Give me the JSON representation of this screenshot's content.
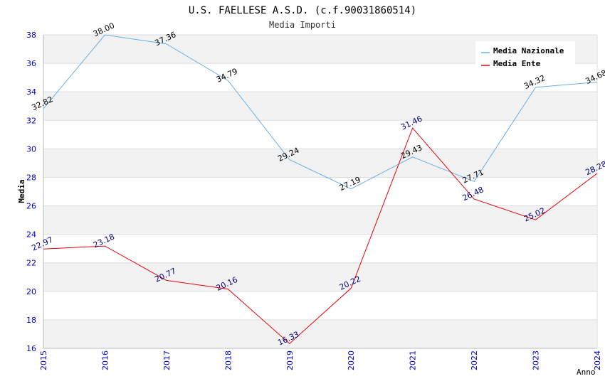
{
  "chart_data": {
    "type": "line",
    "title": "U.S. FAELLESE A.S.D. (c.f.90031860514)",
    "subtitle": "Media Importi",
    "xlabel": "Anno",
    "ylabel": "Media",
    "categories": [
      "2015",
      "2016",
      "2017",
      "2018",
      "2019",
      "2020",
      "2021",
      "2022",
      "2023",
      "2024"
    ],
    "ylim": [
      16,
      38
    ],
    "yticks": [
      "16",
      "18",
      "20",
      "22",
      "24",
      "26",
      "28",
      "30",
      "32",
      "34",
      "36",
      "38"
    ],
    "grid": true,
    "legend_position": "top-right",
    "series": [
      {
        "name": "Media Nazionale",
        "color": "#6aaee6",
        "label_color": "#000000",
        "values": [
          32.82,
          38.0,
          37.36,
          34.79,
          29.24,
          27.19,
          29.43,
          27.71,
          34.32,
          34.68
        ],
        "labels": [
          "32.82",
          "38.00",
          "37.36",
          "34.79",
          "29.24",
          "27.19",
          "29.43",
          "27.71",
          "34.32",
          "34.68"
        ]
      },
      {
        "name": "Media Ente",
        "color": "#e8000b",
        "label_color": "#000080",
        "values": [
          22.97,
          23.18,
          20.77,
          20.16,
          16.33,
          20.22,
          31.46,
          26.48,
          25.02,
          28.28
        ],
        "labels": [
          "22.97",
          "23.18",
          "20.77",
          "20.16",
          "16.33",
          "20.22",
          "31.46",
          "26.48",
          "25.02",
          "28.28"
        ]
      }
    ]
  }
}
